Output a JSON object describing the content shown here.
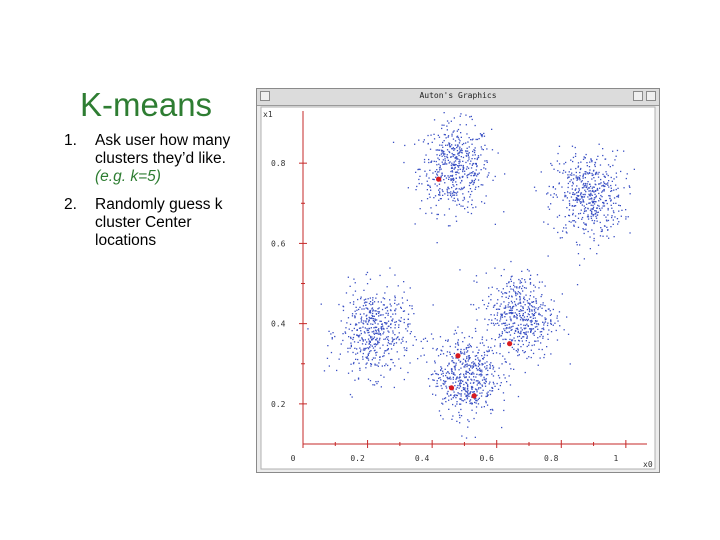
{
  "slide": {
    "title": "K-means",
    "bullets": [
      {
        "num": "1.",
        "lines": [
          "Ask user how many",
          "clusters they’d like."
        ],
        "note": "(e.g. k=5)"
      },
      {
        "num": "2.",
        "lines": [
          "Randomly guess k",
          "cluster Center",
          "locations"
        ]
      }
    ]
  },
  "window": {
    "title": "Auton's Graphics"
  },
  "colors": {
    "points": "#3a50c4",
    "centers": "#d81b20",
    "axes": "#c62828",
    "title": "#2e7d32"
  },
  "chart_data": {
    "type": "scatter",
    "xlabel": "x0",
    "ylabel": "x1",
    "xlim": [
      0,
      1.05
    ],
    "ylim": [
      0.1,
      0.93
    ],
    "xticks": [
      0,
      0.2,
      0.4,
      0.6,
      0.8,
      1
    ],
    "yticks": [
      0.2,
      0.4,
      0.6,
      0.8
    ],
    "xtick_labels": [
      "0",
      "0.2",
      "0.4",
      "0.6",
      "0.8",
      "1"
    ],
    "ytick_labels": [
      "0.2",
      "0.4",
      "0.6",
      "0.8"
    ],
    "series": [
      {
        "marker": "dot",
        "clusters": [
          {
            "cx": 0.47,
            "cy": 0.79,
            "spread": 0.055,
            "count": 520
          },
          {
            "cx": 0.88,
            "cy": 0.72,
            "spread": 0.055,
            "count": 520
          },
          {
            "cx": 0.22,
            "cy": 0.38,
            "spread": 0.055,
            "count": 520
          },
          {
            "cx": 0.67,
            "cy": 0.42,
            "spread": 0.055,
            "count": 520
          },
          {
            "cx": 0.5,
            "cy": 0.27,
            "spread": 0.05,
            "count": 520
          }
        ]
      },
      {
        "marker": "center",
        "points": [
          {
            "x": 0.42,
            "y": 0.76
          },
          {
            "x": 0.48,
            "y": 0.32
          },
          {
            "x": 0.64,
            "y": 0.35
          },
          {
            "x": 0.46,
            "y": 0.24
          },
          {
            "x": 0.53,
            "y": 0.22
          }
        ]
      }
    ]
  }
}
